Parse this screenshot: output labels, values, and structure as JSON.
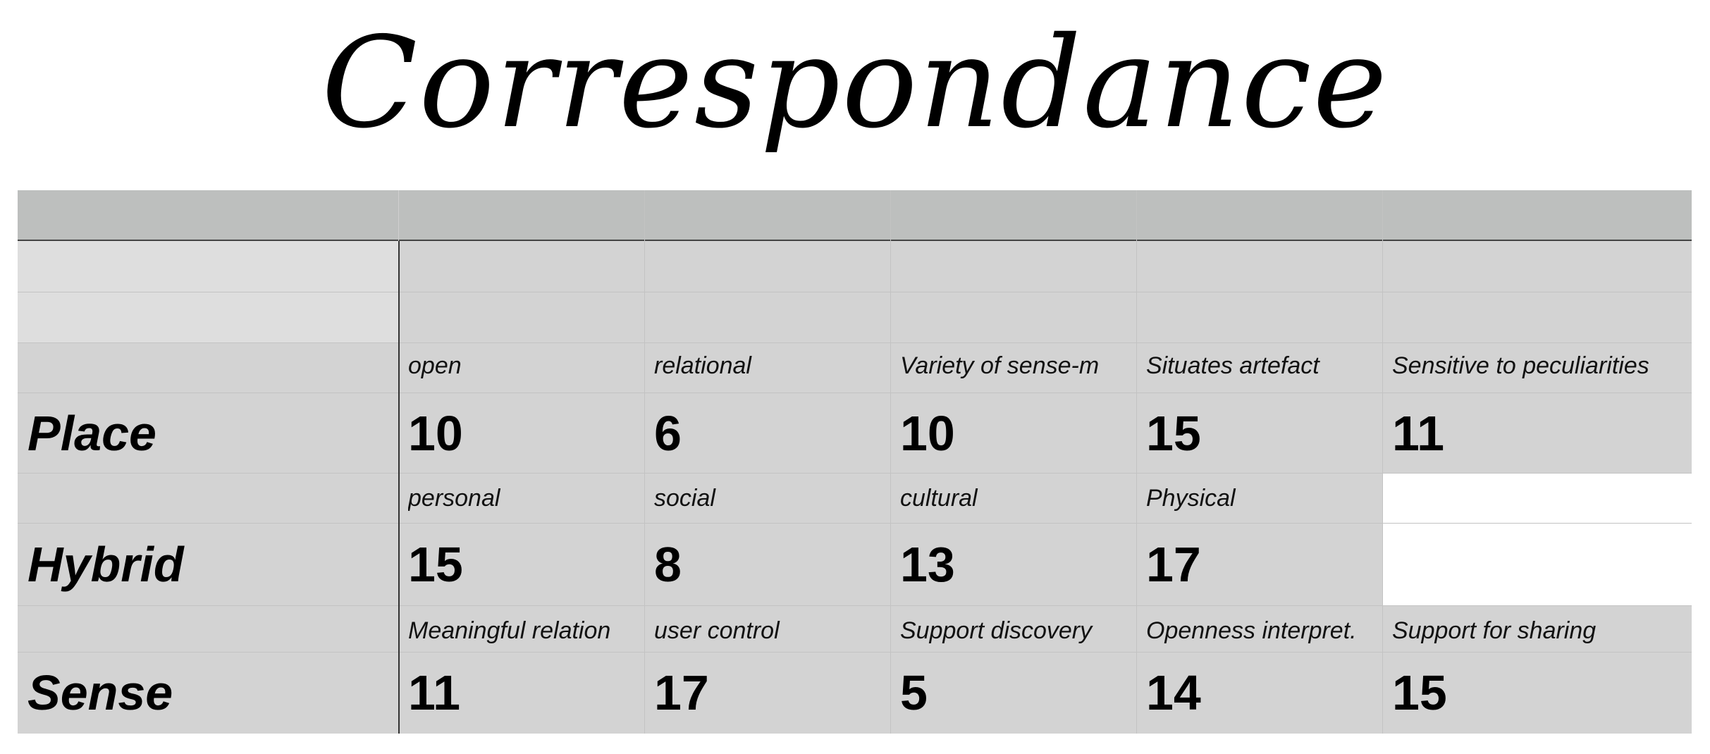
{
  "title": "Correspondance",
  "rows": [
    {
      "name": "Place",
      "labels": [
        "open",
        "relational",
        "Variety of sense-m",
        "Situates artefact",
        "Sensitive to peculiarities"
      ],
      "values": [
        "10",
        "6",
        "10",
        "15",
        "11"
      ]
    },
    {
      "name": "Hybrid",
      "labels": [
        "personal",
        "social",
        "cultural",
        "Physical",
        ""
      ],
      "values": [
        "15",
        "8",
        "13",
        "17",
        ""
      ]
    },
    {
      "name": "Sense",
      "labels": [
        "Meaningful relation",
        "user control",
        "Support discovery",
        "Openness interpret.",
        "Support for sharing"
      ],
      "values": [
        "11",
        "17",
        "5",
        "14",
        "15"
      ]
    }
  ]
}
